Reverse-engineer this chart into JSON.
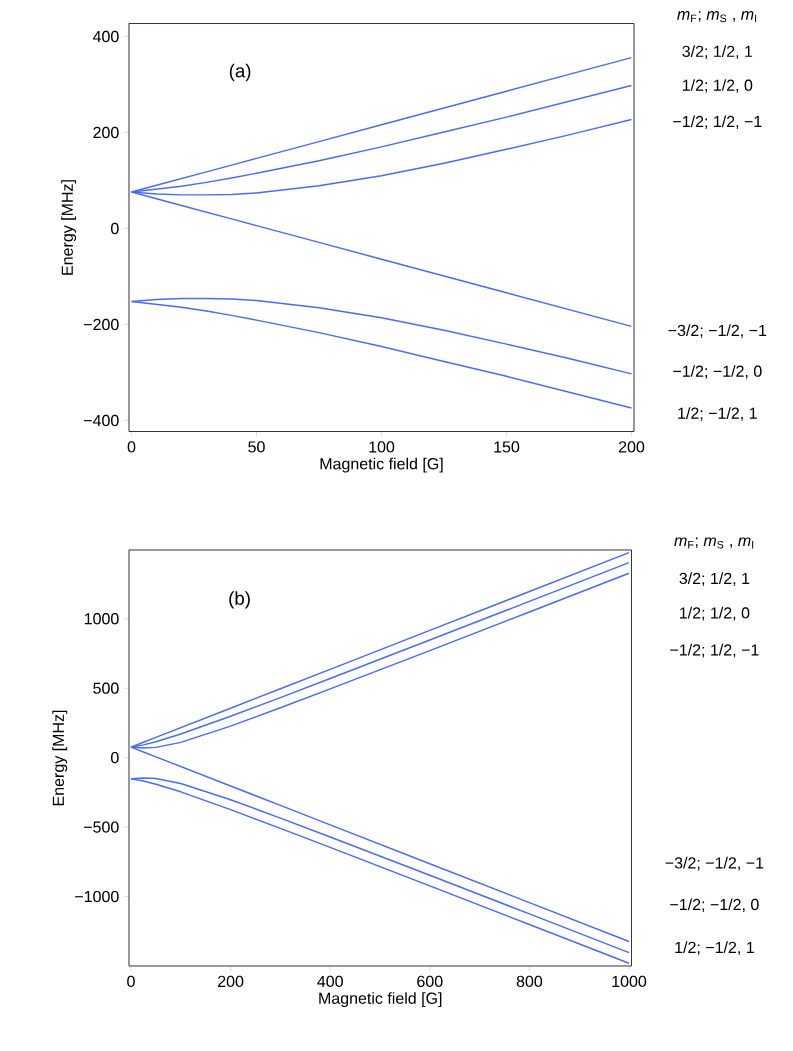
{
  "chart_data": [
    {
      "type": "line",
      "xlabel": "Magnetic field [G]",
      "ylabel": "Energy [MHz]",
      "legend_title": "*m*$_{F}$; *m*$_{S}$ , *m*$_{I}$",
      "annotations": [
        "(a)"
      ],
      "x": [
        0,
        10,
        20,
        30,
        40,
        50,
        75,
        100,
        125,
        150,
        175,
        200
      ],
      "xlim": [
        -1,
        201
      ],
      "ylim": [
        -423,
        427
      ],
      "xticks": [
        0,
        50,
        100,
        150,
        200
      ],
      "yticks": [
        {
          "value": -400,
          "label": "−400"
        },
        {
          "value": -200,
          "label": "−200"
        },
        0,
        200,
        400
      ],
      "series": [
        {
          "name": "3/2; 1/2, 1",
          "color": "#4a6cf0",
          "values": [
            76,
            90,
            104,
            118,
            132,
            146,
            181,
            216,
            251,
            286,
            321,
            356
          ]
        },
        {
          "name": "1/2; 1/2, 0",
          "color": "#4a6cf0",
          "values": [
            76,
            82,
            88,
            96,
            105,
            115,
            141,
            170,
            201,
            232,
            265,
            298
          ]
        },
        {
          "name": "−1/2; 1/2, −1",
          "color": "#4a6cf0",
          "values": [
            76,
            72,
            70,
            70,
            71,
            74,
            89,
            110,
            136,
            165,
            195,
            227
          ]
        },
        {
          "name": "−3/2; −1/2, −1",
          "color": "#4a6cf0",
          "values": [
            76,
            62,
            48,
            34,
            20,
            6,
            -29,
            -64,
            -99,
            -134,
            -169,
            -204
          ]
        },
        {
          "name": "−1/2; −1/2, 0",
          "color": "#4a6cf0",
          "values": [
            -152,
            -148,
            -146,
            -146,
            -147,
            -150,
            -165,
            -186,
            -212,
            -241,
            -271,
            -303
          ]
        },
        {
          "name": "1/2; −1/2, 1",
          "color": "#4a6cf0",
          "values": [
            -152,
            -158,
            -164,
            -172,
            -181,
            -191,
            -217,
            -246,
            -277,
            -308,
            -341,
            -374
          ]
        }
      ]
    },
    {
      "type": "line",
      "xlabel": "Magnetic field [G]",
      "ylabel": "Energy [MHz]",
      "legend_title": "*m*$_{F}$; *m*$_{S}$ , *m*$_{I}$",
      "annotations": [
        "(b)"
      ],
      "x": [
        0,
        25,
        50,
        100,
        200,
        300,
        400,
        600,
        800,
        1000
      ],
      "xlim": [
        -4,
        1005
      ],
      "ylim": [
        -1500,
        1495
      ],
      "xticks": [
        0,
        200,
        400,
        600,
        800,
        1000
      ],
      "yticks": [
        {
          "value": -1000,
          "label": "−1000"
        },
        {
          "value": -500,
          "label": "−500"
        },
        0,
        500,
        1000
      ],
      "series": [
        {
          "name": "3/2; 1/2, 1",
          "color": "#4a6cf0",
          "values": [
            76,
            111,
            146,
            216,
            356,
            496,
            636,
            916,
            1196,
            1476
          ]
        },
        {
          "name": "1/2; 1/2, 0",
          "color": "#4a6cf0",
          "values": [
            76,
            92,
            114,
            170,
            298,
            432,
            570,
            847,
            1125,
            1404
          ]
        },
        {
          "name": "−1/2; 1/2, −1",
          "color": "#4a6cf0",
          "values": [
            76,
            70,
            74,
            110,
            227,
            359,
            495,
            771,
            1049,
            1328
          ]
        },
        {
          "name": "−3/2; −1/2, −1",
          "color": "#4a6cf0",
          "values": [
            76,
            41,
            6,
            -64,
            -204,
            -344,
            -484,
            -764,
            -1044,
            -1324
          ]
        },
        {
          "name": "−1/2; −1/2, 0",
          "color": "#4a6cf0",
          "values": [
            -152,
            -146,
            -150,
            -186,
            -303,
            -435,
            -571,
            -847,
            -1125,
            -1404
          ]
        },
        {
          "name": "1/2; −1/2, 1",
          "color": "#4a6cf0",
          "values": [
            -152,
            -168,
            -191,
            -246,
            -374,
            -509,
            -646,
            -923,
            -1201,
            -1480
          ]
        }
      ]
    }
  ]
}
